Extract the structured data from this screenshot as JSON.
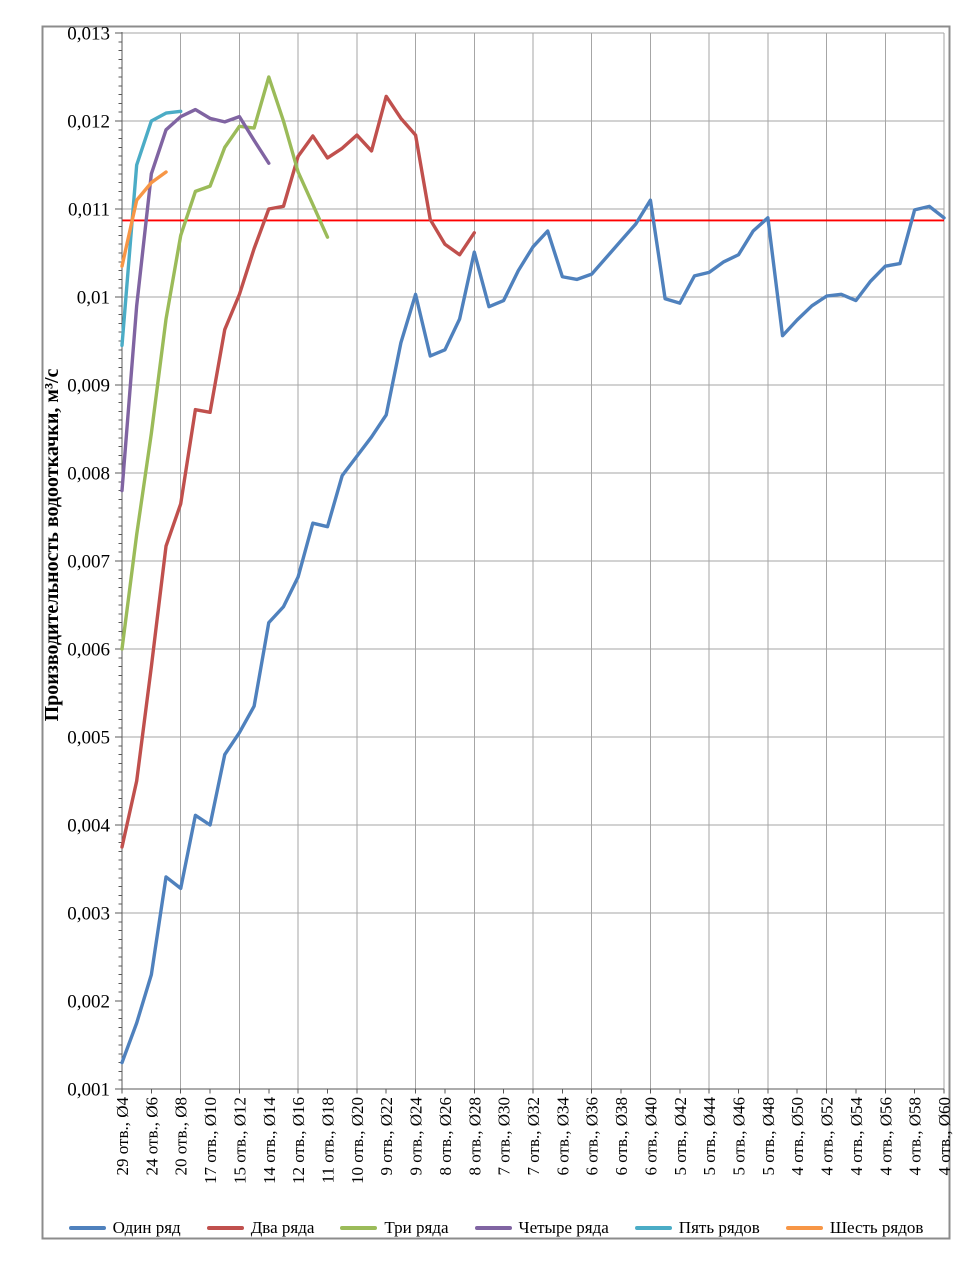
{
  "chart_data": {
    "type": "line",
    "title": "",
    "ylabel": "Производительность водооткачки, м³/с",
    "xlabel": "",
    "ylim": [
      0.001,
      0.013
    ],
    "ytick_step": 0.001,
    "ytick_labels": [
      "0,001",
      "0,002",
      "0,003",
      "0,004",
      "0,005",
      "0,006",
      "0,007",
      "0,008",
      "0,009",
      "0,01",
      "0,011",
      "0,012",
      "0,013"
    ],
    "grid": {
      "horizontal": true,
      "vertical_every_2nd_label": true
    },
    "legend_position": "bottom",
    "x_categories": [
      "29 отв., Ø4",
      "24 отв., Ø6",
      "20 отв., Ø8",
      "17 отв., Ø10",
      "15 отв., Ø12",
      "14 отв., Ø14",
      "12 отв., Ø16",
      "11 отв., Ø18",
      "10 отв., Ø20",
      "9 отв., Ø22",
      "9 отв., Ø24",
      "8 отв., Ø26",
      "8 отв., Ø28",
      "7 отв., Ø30",
      "7 отв., Ø32",
      "6 отв., Ø34",
      "6 отв., Ø36",
      "6 отв., Ø38",
      "6 отв., Ø40",
      "5 отв., Ø42",
      "5 отв., Ø44",
      "5 отв., Ø46",
      "5 отв., Ø48",
      "4 отв., Ø50",
      "4 отв., Ø52",
      "4 отв., Ø54",
      "4 отв., Ø56",
      "4 отв., Ø58",
      "4 отв., Ø60"
    ],
    "x_note": "data points at every unit diameter Ø4..Ø60; axis labels only at even diameters",
    "x_diameter_start": 4,
    "x_diameter_end": 60,
    "x_diameter_step": 1,
    "reference_line": {
      "value": 0.01087,
      "color": "#FF0000"
    },
    "series": [
      {
        "name": "Один ряд",
        "color": "#4F81BD",
        "values": [
          0.0013,
          0.00175,
          0.0023,
          0.00341,
          0.00328,
          0.00411,
          0.004,
          0.0048,
          0.00505,
          0.00535,
          0.0063,
          0.00648,
          0.00682,
          0.00743,
          0.00739,
          0.00797,
          0.00819,
          0.00841,
          0.00866,
          0.00948,
          0.01003,
          0.00933,
          0.0094,
          0.00975,
          0.01051,
          0.00989,
          0.00996,
          0.0103,
          0.01057,
          0.01075,
          0.01023,
          0.0102,
          0.01026,
          0.01045,
          0.01064,
          0.01083,
          0.0111,
          0.00998,
          0.00993,
          0.01024,
          0.01028,
          0.0104,
          0.01048,
          0.01075,
          0.0109,
          0.00956,
          0.00974,
          0.0099,
          0.01001,
          0.01003,
          0.00996,
          0.01018,
          0.01035,
          0.01038,
          0.01099,
          0.01103,
          0.0109
        ]
      },
      {
        "name": "Два ряда",
        "color": "#C0504D",
        "values": [
          0.00375,
          0.0045,
          0.0058,
          0.00717,
          0.00765,
          0.00872,
          0.00869,
          0.00963,
          0.01003,
          0.01055,
          0.011,
          0.01103,
          0.0116,
          0.01183,
          0.01158,
          0.01169,
          0.01184,
          0.01166,
          0.01228,
          0.01203,
          0.01184,
          0.01088,
          0.0106,
          0.01048,
          0.01073
        ]
      },
      {
        "name": "Три ряда",
        "color": "#9BBB59",
        "values": [
          0.006,
          0.0073,
          0.00845,
          0.00975,
          0.0107,
          0.0112,
          0.01126,
          0.0117,
          0.01194,
          0.01192,
          0.0125,
          0.012,
          0.01142,
          0.01105,
          0.01068
        ]
      },
      {
        "name": "Четыре ряда",
        "color": "#8064A2",
        "values": [
          0.0078,
          0.0099,
          0.0114,
          0.0119,
          0.01205,
          0.01213,
          0.01203,
          0.01199,
          0.01205,
          0.01178,
          0.01152
        ]
      },
      {
        "name": "Пять рядов",
        "color": "#4BACC6",
        "values": [
          0.00945,
          0.0115,
          0.012,
          0.01209,
          0.01211
        ]
      },
      {
        "name": "Шесть рядов",
        "color": "#F79646",
        "values": [
          0.01035,
          0.0111,
          0.0113,
          0.01142
        ]
      }
    ]
  }
}
